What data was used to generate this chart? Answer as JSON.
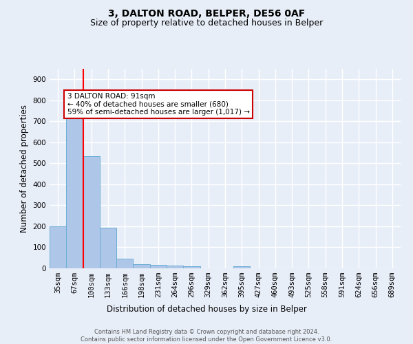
{
  "title1": "3, DALTON ROAD, BELPER, DE56 0AF",
  "title2": "Size of property relative to detached houses in Belper",
  "xlabel": "Distribution of detached houses by size in Belper",
  "ylabel": "Number of detached properties",
  "categories": [
    "35sqm",
    "67sqm",
    "100sqm",
    "133sqm",
    "166sqm",
    "198sqm",
    "231sqm",
    "264sqm",
    "296sqm",
    "329sqm",
    "362sqm",
    "395sqm",
    "427sqm",
    "460sqm",
    "493sqm",
    "525sqm",
    "558sqm",
    "591sqm",
    "624sqm",
    "656sqm",
    "689sqm"
  ],
  "values": [
    200,
    715,
    535,
    193,
    47,
    20,
    15,
    13,
    10,
    0,
    0,
    9,
    0,
    0,
    0,
    0,
    0,
    0,
    0,
    0,
    0
  ],
  "bar_color": "#aec6e8",
  "bar_edge_color": "#6aaed6",
  "red_line_x": 1.5,
  "annotation_text": "3 DALTON ROAD: 91sqm\n← 40% of detached houses are smaller (680)\n59% of semi-detached houses are larger (1,017) →",
  "annotation_box_color": "#ffffff",
  "annotation_box_edge": "#cc0000",
  "ylim": [
    0,
    950
  ],
  "yticks": [
    0,
    100,
    200,
    300,
    400,
    500,
    600,
    700,
    800,
    900
  ],
  "background_color": "#e8eef8",
  "grid_color": "#ffffff",
  "footnote": "Contains HM Land Registry data © Crown copyright and database right 2024.\nContains public sector information licensed under the Open Government Licence v3.0.",
  "title1_fontsize": 10,
  "title2_fontsize": 9,
  "xlabel_fontsize": 8.5,
  "ylabel_fontsize": 8.5,
  "tick_fontsize": 7.5,
  "annot_fontsize": 7.5,
  "footnote_fontsize": 6.0
}
